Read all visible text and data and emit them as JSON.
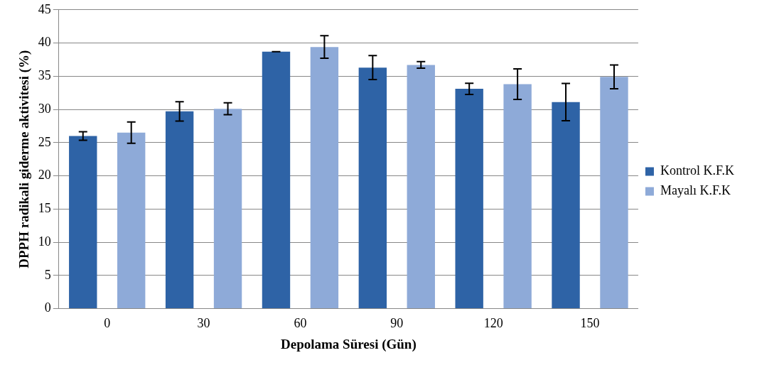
{
  "chart_data": {
    "type": "bar",
    "xlabel": "Depolama Süresi (Gün)",
    "ylabel": "DPPH radikali giderme aktivitesi (%)",
    "categories": [
      "0",
      "30",
      "60",
      "90",
      "120",
      "150"
    ],
    "series": [
      {
        "name": "Kontrol K.F.K",
        "color": "#2e63a6",
        "values": [
          26.0,
          29.7,
          38.7,
          36.3,
          33.1,
          31.1
        ],
        "errors": [
          0.65,
          1.45,
          0,
          1.8,
          0.85,
          2.8
        ]
      },
      {
        "name": "Mayalı K.F.K",
        "color": "#8eaad8",
        "values": [
          26.5,
          30.1,
          39.4,
          36.7,
          33.8,
          34.9
        ],
        "errors": [
          1.6,
          0.9,
          1.7,
          0.5,
          2.3,
          1.8
        ]
      }
    ],
    "ylim": [
      0,
      45
    ],
    "yticks": [
      0,
      5,
      10,
      15,
      20,
      25,
      30,
      35,
      40,
      45
    ],
    "grid": "y",
    "legend": "right"
  }
}
